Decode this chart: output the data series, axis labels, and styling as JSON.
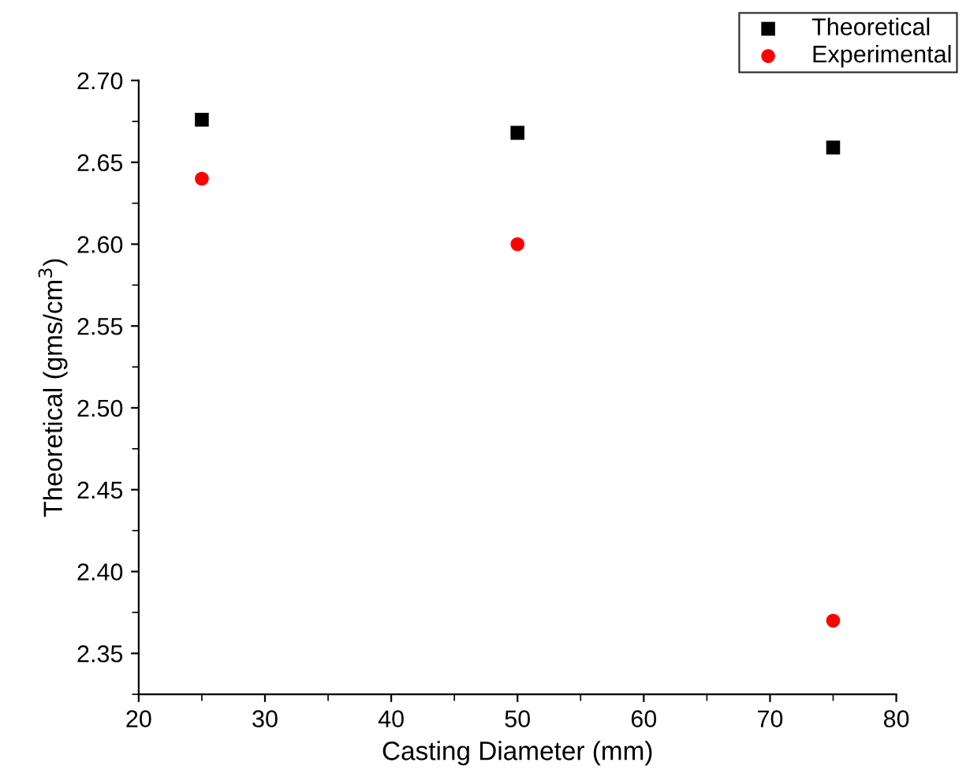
{
  "chart_data": {
    "type": "scatter",
    "xlabel": "Casting Diameter (mm)",
    "ylabel": "Theoretical (gms/cm$^{3}$)",
    "x": [
      25,
      50,
      75
    ],
    "series": [
      {
        "name": "Theoretical",
        "color": "#000000",
        "marker": "square",
        "values": [
          2.676,
          2.668,
          2.659
        ]
      },
      {
        "name": "Experimental",
        "color": "#ff0000",
        "marker": "circle",
        "values": [
          2.64,
          2.6,
          2.37
        ]
      }
    ],
    "xlim": [
      20,
      80
    ],
    "xticks": [
      20,
      30,
      40,
      50,
      60,
      70,
      80
    ],
    "ylim": [
      2.325,
      2.7
    ],
    "yticks": [
      2.35,
      {
        "value": 2.4,
        "label": "2.40"
      },
      2.45,
      {
        "value": 2.5,
        "label": "2.50"
      },
      2.55,
      {
        "value": 2.6,
        "label": "2.60"
      },
      2.65,
      {
        "value": 2.7,
        "label": "2.70"
      }
    ],
    "grid": false,
    "legend": "top right"
  }
}
